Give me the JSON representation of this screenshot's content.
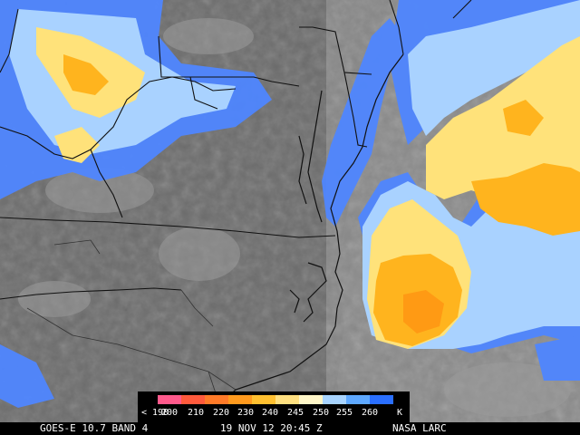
{
  "legend": {
    "unit": "K",
    "ticks": [
      "< 190",
      "200",
      "210",
      "220",
      "230",
      "240",
      "245",
      "250",
      "255",
      "260"
    ],
    "colors": [
      "#ff5a8c",
      "#ff5a3c",
      "#ff7a28",
      "#ff9a1e",
      "#ffc030",
      "#ffe080",
      "#fff6c8",
      "#a8d4ff",
      "#5ea8ff",
      "#2a6fff"
    ]
  },
  "footer": {
    "satellite": "GOES-E 10.7 BAND 4",
    "timestamp": "19 NOV 12 20:45 Z",
    "credit": "NASA LARC"
  },
  "palette": {
    "land_gray": "#6a6a6a",
    "ocean_gray": "#8c8c8c",
    "cloud_blue": "#4f86ff",
    "cloud_cyan": "#a9d2ff",
    "cloud_yellow": "#ffe27a",
    "cloud_orange": "#ffb41e",
    "border": "#111111"
  }
}
